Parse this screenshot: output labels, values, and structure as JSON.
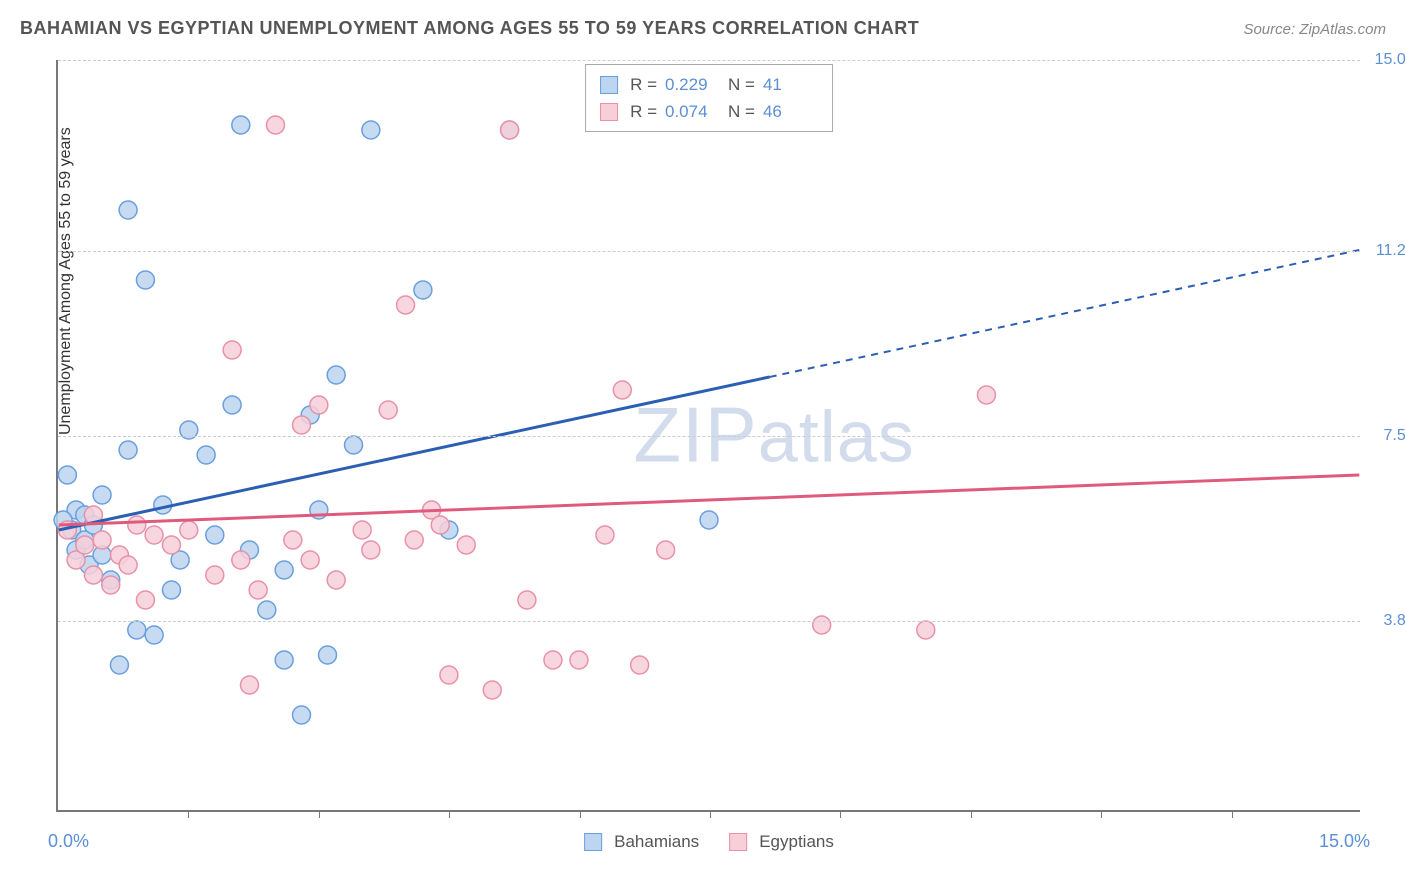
{
  "title": "BAHAMIAN VS EGYPTIAN UNEMPLOYMENT AMONG AGES 55 TO 59 YEARS CORRELATION CHART",
  "source": "Source: ZipAtlas.com",
  "watermark": "ZIPatlas",
  "y_axis_label": "Unemployment Among Ages 55 to 59 years",
  "xlim": [
    0,
    15
  ],
  "ylim": [
    0,
    15
  ],
  "x_start_label": "0.0%",
  "x_end_label": "15.0%",
  "x_ticks": [
    1.5,
    3.0,
    4.5,
    6.0,
    7.5,
    9.0,
    10.5,
    12.0,
    13.5
  ],
  "y_gridlines": [
    {
      "v": 3.8,
      "label": "3.8%"
    },
    {
      "v": 7.5,
      "label": "7.5%"
    },
    {
      "v": 11.2,
      "label": "11.2%"
    },
    {
      "v": 15.0,
      "label": "15.0%"
    }
  ],
  "marker_radius": 9,
  "marker_stroke_width": 1.5,
  "trend_line_width": 3,
  "series": [
    {
      "name": "Bahamians",
      "fill": "#bcd5f0",
      "stroke": "#6a9fde",
      "line_color": "#2b5fb3",
      "r_value": "0.229",
      "n_value": "41",
      "trend": {
        "x1": 0,
        "y1": 5.6,
        "x2": 15,
        "y2": 11.2,
        "solid_until_x": 8.2
      },
      "points": [
        [
          0.1,
          6.7
        ],
        [
          0.15,
          5.6
        ],
        [
          0.2,
          5.2
        ],
        [
          0.2,
          6.0
        ],
        [
          0.3,
          5.9
        ],
        [
          0.3,
          5.4
        ],
        [
          0.35,
          4.9
        ],
        [
          0.4,
          5.7
        ],
        [
          0.5,
          5.1
        ],
        [
          0.5,
          6.3
        ],
        [
          0.6,
          4.6
        ],
        [
          0.7,
          2.9
        ],
        [
          0.8,
          12.0
        ],
        [
          0.8,
          7.2
        ],
        [
          0.9,
          3.6
        ],
        [
          1.0,
          10.6
        ],
        [
          1.1,
          3.5
        ],
        [
          1.2,
          6.1
        ],
        [
          1.3,
          4.4
        ],
        [
          1.4,
          5.0
        ],
        [
          1.5,
          7.6
        ],
        [
          1.7,
          7.1
        ],
        [
          1.8,
          5.5
        ],
        [
          2.0,
          8.1
        ],
        [
          2.1,
          13.7
        ],
        [
          2.2,
          5.2
        ],
        [
          2.4,
          4.0
        ],
        [
          2.6,
          3.0
        ],
        [
          2.6,
          4.8
        ],
        [
          2.8,
          1.9
        ],
        [
          2.9,
          7.9
        ],
        [
          3.0,
          6.0
        ],
        [
          3.1,
          3.1
        ],
        [
          3.2,
          8.7
        ],
        [
          3.4,
          7.3
        ],
        [
          3.6,
          13.6
        ],
        [
          4.2,
          10.4
        ],
        [
          4.5,
          5.6
        ],
        [
          5.2,
          13.6
        ],
        [
          7.5,
          5.8
        ],
        [
          0.05,
          5.8
        ]
      ]
    },
    {
      "name": "Egyptians",
      "fill": "#f6cfd9",
      "stroke": "#e891a8",
      "line_color": "#e05a7e",
      "r_value": "0.074",
      "n_value": "46",
      "trend": {
        "x1": 0,
        "y1": 5.7,
        "x2": 15,
        "y2": 6.7,
        "solid_until_x": 15
      },
      "points": [
        [
          0.1,
          5.6
        ],
        [
          0.2,
          5.0
        ],
        [
          0.3,
          5.3
        ],
        [
          0.4,
          4.7
        ],
        [
          0.4,
          5.9
        ],
        [
          0.5,
          5.4
        ],
        [
          0.6,
          4.5
        ],
        [
          0.7,
          5.1
        ],
        [
          0.8,
          4.9
        ],
        [
          0.9,
          5.7
        ],
        [
          1.0,
          4.2
        ],
        [
          1.1,
          5.5
        ],
        [
          1.3,
          5.3
        ],
        [
          1.5,
          5.6
        ],
        [
          1.8,
          4.7
        ],
        [
          2.0,
          9.2
        ],
        [
          2.1,
          5.0
        ],
        [
          2.2,
          2.5
        ],
        [
          2.3,
          4.4
        ],
        [
          2.5,
          13.7
        ],
        [
          2.7,
          5.4
        ],
        [
          2.8,
          7.7
        ],
        [
          2.9,
          5.0
        ],
        [
          3.0,
          8.1
        ],
        [
          3.2,
          4.6
        ],
        [
          3.5,
          5.6
        ],
        [
          3.6,
          5.2
        ],
        [
          3.8,
          8.0
        ],
        [
          4.0,
          10.1
        ],
        [
          4.1,
          5.4
        ],
        [
          4.3,
          6.0
        ],
        [
          4.4,
          5.7
        ],
        [
          4.5,
          2.7
        ],
        [
          4.7,
          5.3
        ],
        [
          5.0,
          2.4
        ],
        [
          5.2,
          13.6
        ],
        [
          5.4,
          4.2
        ],
        [
          5.7,
          3.0
        ],
        [
          6.0,
          3.0
        ],
        [
          6.5,
          8.4
        ],
        [
          6.7,
          2.9
        ],
        [
          7.0,
          5.2
        ],
        [
          8.8,
          3.7
        ],
        [
          10.0,
          3.6
        ],
        [
          10.7,
          8.3
        ],
        [
          6.3,
          5.5
        ]
      ]
    }
  ],
  "legend_bottom": [
    {
      "label": "Bahamians",
      "fill": "#bcd5f0",
      "stroke": "#6a9fde"
    },
    {
      "label": "Egyptians",
      "fill": "#f6cfd9",
      "stroke": "#e891a8"
    }
  ]
}
